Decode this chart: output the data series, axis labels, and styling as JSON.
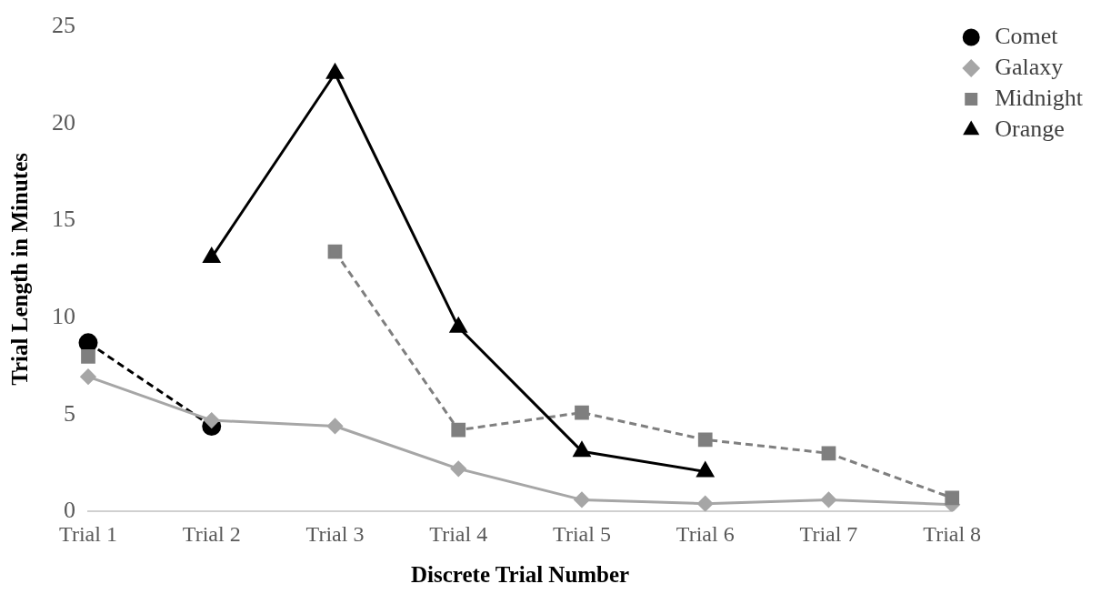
{
  "chart_data": {
    "type": "line",
    "xlabel": "Discrete Trial Number",
    "ylabel": "Trial Length in Minutes",
    "categories": [
      "Trial 1",
      "Trial 2",
      "Trial 3",
      "Trial 4",
      "Trial 5",
      "Trial 6",
      "Trial 7",
      "Trial 8"
    ],
    "ylim": [
      0,
      25
    ],
    "yticks": [
      0,
      5,
      10,
      15,
      20,
      25
    ],
    "grid": false,
    "legend": "top right",
    "series": [
      {
        "name": "Comet",
        "color": "#000000",
        "marker": "circle",
        "line_style": "dashed",
        "values": [
          8.7,
          4.4,
          null,
          null,
          null,
          null,
          null,
          null
        ]
      },
      {
        "name": "Galaxy",
        "color": "#a6a6a6",
        "marker": "diamond",
        "line_style": "solid",
        "values": [
          6.95,
          4.7,
          4.4,
          2.2,
          0.6,
          0.4,
          0.6,
          0.35
        ]
      },
      {
        "name": "Midnight",
        "color": "#7f7f7f",
        "marker": "square",
        "line_style": "dashed",
        "values": [
          8.0,
          null,
          13.4,
          4.2,
          5.1,
          3.7,
          3.0,
          0.7
        ]
      },
      {
        "name": "Orange",
        "color": "#000000",
        "marker": "triangle",
        "line_style": "solid",
        "values": [
          null,
          13.1,
          22.6,
          9.5,
          3.1,
          2.05,
          null,
          null
        ]
      }
    ]
  }
}
